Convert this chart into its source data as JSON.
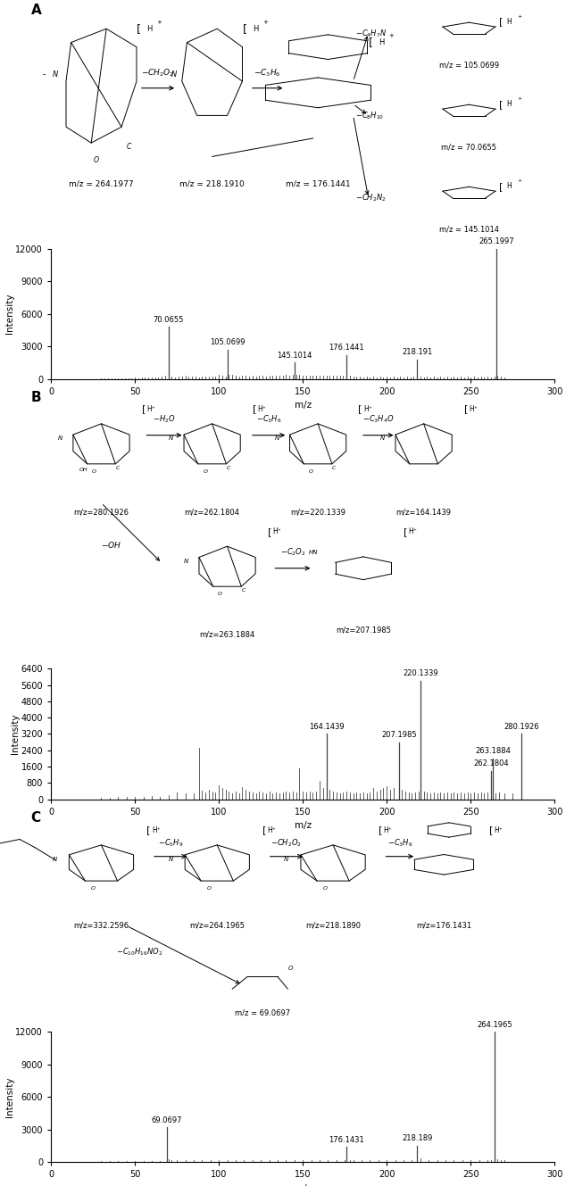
{
  "panel_A": {
    "spectrum": {
      "major_peaks": [
        [
          70.0655,
          4800
        ],
        [
          105.0699,
          2700
        ],
        [
          145.1014,
          1500
        ],
        [
          176.1441,
          2200
        ],
        [
          218.191,
          1800
        ],
        [
          265.1997,
          12000
        ]
      ],
      "minor_peaks": [
        [
          30,
          80
        ],
        [
          32,
          60
        ],
        [
          34,
          70
        ],
        [
          36,
          60
        ],
        [
          38,
          80
        ],
        [
          40,
          100
        ],
        [
          42,
          80
        ],
        [
          44,
          70
        ],
        [
          46,
          80
        ],
        [
          48,
          100
        ],
        [
          50,
          120
        ],
        [
          52,
          100
        ],
        [
          54,
          120
        ],
        [
          56,
          150
        ],
        [
          58,
          120
        ],
        [
          60,
          150
        ],
        [
          62,
          120
        ],
        [
          64,
          150
        ],
        [
          66,
          200
        ],
        [
          68,
          300
        ],
        [
          72,
          200
        ],
        [
          74,
          180
        ],
        [
          76,
          200
        ],
        [
          78,
          220
        ],
        [
          80,
          280
        ],
        [
          82,
          250
        ],
        [
          84,
          220
        ],
        [
          86,
          200
        ],
        [
          88,
          180
        ],
        [
          90,
          200
        ],
        [
          92,
          220
        ],
        [
          94,
          250
        ],
        [
          96,
          200
        ],
        [
          98,
          220
        ],
        [
          100,
          350
        ],
        [
          102,
          280
        ],
        [
          104,
          250
        ],
        [
          106,
          400
        ],
        [
          108,
          350
        ],
        [
          110,
          300
        ],
        [
          112,
          250
        ],
        [
          114,
          300
        ],
        [
          116,
          280
        ],
        [
          118,
          250
        ],
        [
          120,
          300
        ],
        [
          122,
          250
        ],
        [
          124,
          300
        ],
        [
          126,
          280
        ],
        [
          128,
          250
        ],
        [
          130,
          300
        ],
        [
          132,
          280
        ],
        [
          134,
          300
        ],
        [
          136,
          280
        ],
        [
          138,
          300
        ],
        [
          140,
          350
        ],
        [
          142,
          300
        ],
        [
          144,
          350
        ],
        [
          146,
          400
        ],
        [
          148,
          350
        ],
        [
          150,
          300
        ],
        [
          152,
          280
        ],
        [
          154,
          300
        ],
        [
          156,
          280
        ],
        [
          158,
          300
        ],
        [
          160,
          280
        ],
        [
          162,
          300
        ],
        [
          164,
          280
        ],
        [
          166,
          300
        ],
        [
          168,
          280
        ],
        [
          170,
          300
        ],
        [
          172,
          280
        ],
        [
          174,
          300
        ],
        [
          178,
          280
        ],
        [
          180,
          250
        ],
        [
          182,
          220
        ],
        [
          184,
          200
        ],
        [
          186,
          180
        ],
        [
          188,
          200
        ],
        [
          190,
          180
        ],
        [
          192,
          200
        ],
        [
          194,
          180
        ],
        [
          196,
          200
        ],
        [
          198,
          180
        ],
        [
          200,
          200
        ],
        [
          202,
          180
        ],
        [
          204,
          200
        ],
        [
          206,
          180
        ],
        [
          208,
          200
        ],
        [
          210,
          180
        ],
        [
          212,
          200
        ],
        [
          214,
          180
        ],
        [
          216,
          200
        ],
        [
          220,
          200
        ],
        [
          222,
          180
        ],
        [
          224,
          200
        ],
        [
          226,
          180
        ],
        [
          228,
          200
        ],
        [
          230,
          180
        ],
        [
          232,
          200
        ],
        [
          234,
          180
        ],
        [
          236,
          200
        ],
        [
          238,
          180
        ],
        [
          240,
          200
        ],
        [
          242,
          180
        ],
        [
          244,
          200
        ],
        [
          246,
          180
        ],
        [
          248,
          200
        ],
        [
          250,
          180
        ],
        [
          252,
          200
        ],
        [
          254,
          180
        ],
        [
          256,
          200
        ],
        [
          258,
          180
        ],
        [
          260,
          200
        ],
        [
          262,
          180
        ],
        [
          264,
          200
        ],
        [
          266,
          300
        ],
        [
          268,
          200
        ],
        [
          270,
          180
        ]
      ],
      "xlim": [
        0,
        300
      ],
      "ylim": [
        0,
        12000
      ],
      "yticks": [
        0,
        3000,
        6000,
        9000,
        12000
      ],
      "xlabel": "m/z",
      "ylabel": "Intensity",
      "labeled_peaks": [
        [
          70.0655,
          4800,
          "70.0655",
          "left"
        ],
        [
          105.0699,
          2700,
          "105.0699",
          "center"
        ],
        [
          145.1014,
          1500,
          "145.1014",
          "center"
        ],
        [
          176.1441,
          2200,
          "176.1441",
          "center"
        ],
        [
          218.191,
          1800,
          "218.191",
          "center"
        ],
        [
          265.1997,
          12000,
          "265.1997",
          "left"
        ]
      ]
    }
  },
  "panel_B": {
    "spectrum": {
      "major_peaks": [
        [
          164.1439,
          3200
        ],
        [
          207.1985,
          2800
        ],
        [
          220.1339,
          5800
        ],
        [
          262.1804,
          1400
        ],
        [
          263.1884,
          2000
        ],
        [
          280.1926,
          3200
        ]
      ],
      "minor_peaks": [
        [
          30,
          80
        ],
        [
          35,
          80
        ],
        [
          40,
          100
        ],
        [
          45,
          100
        ],
        [
          50,
          120
        ],
        [
          55,
          120
        ],
        [
          60,
          150
        ],
        [
          65,
          120
        ],
        [
          70,
          180
        ],
        [
          75,
          350
        ],
        [
          80,
          300
        ],
        [
          85,
          300
        ],
        [
          88,
          2500
        ],
        [
          90,
          400
        ],
        [
          92,
          350
        ],
        [
          94,
          450
        ],
        [
          96,
          380
        ],
        [
          98,
          350
        ],
        [
          100,
          700
        ],
        [
          102,
          550
        ],
        [
          104,
          480
        ],
        [
          106,
          380
        ],
        [
          108,
          300
        ],
        [
          110,
          380
        ],
        [
          112,
          300
        ],
        [
          114,
          600
        ],
        [
          116,
          450
        ],
        [
          118,
          380
        ],
        [
          120,
          320
        ],
        [
          122,
          300
        ],
        [
          124,
          380
        ],
        [
          126,
          320
        ],
        [
          128,
          300
        ],
        [
          130,
          380
        ],
        [
          132,
          300
        ],
        [
          134,
          320
        ],
        [
          136,
          300
        ],
        [
          138,
          320
        ],
        [
          140,
          380
        ],
        [
          142,
          320
        ],
        [
          144,
          380
        ],
        [
          146,
          320
        ],
        [
          148,
          1500
        ],
        [
          150,
          380
        ],
        [
          152,
          320
        ],
        [
          154,
          380
        ],
        [
          156,
          320
        ],
        [
          158,
          380
        ],
        [
          160,
          900
        ],
        [
          162,
          550
        ],
        [
          166,
          450
        ],
        [
          168,
          380
        ],
        [
          170,
          320
        ],
        [
          172,
          280
        ],
        [
          174,
          320
        ],
        [
          176,
          380
        ],
        [
          178,
          320
        ],
        [
          180,
          280
        ],
        [
          182,
          320
        ],
        [
          184,
          280
        ],
        [
          186,
          320
        ],
        [
          188,
          280
        ],
        [
          190,
          320
        ],
        [
          192,
          550
        ],
        [
          194,
          380
        ],
        [
          196,
          450
        ],
        [
          198,
          550
        ],
        [
          200,
          650
        ],
        [
          202,
          450
        ],
        [
          204,
          550
        ],
        [
          209,
          450
        ],
        [
          211,
          380
        ],
        [
          213,
          320
        ],
        [
          215,
          280
        ],
        [
          217,
          320
        ],
        [
          219,
          380
        ],
        [
          222,
          380
        ],
        [
          224,
          320
        ],
        [
          226,
          280
        ],
        [
          228,
          320
        ],
        [
          230,
          280
        ],
        [
          232,
          320
        ],
        [
          234,
          280
        ],
        [
          236,
          320
        ],
        [
          238,
          280
        ],
        [
          240,
          320
        ],
        [
          242,
          280
        ],
        [
          244,
          320
        ],
        [
          246,
          280
        ],
        [
          248,
          320
        ],
        [
          250,
          280
        ],
        [
          252,
          320
        ],
        [
          254,
          280
        ],
        [
          256,
          320
        ],
        [
          258,
          280
        ],
        [
          260,
          320
        ],
        [
          265,
          280
        ],
        [
          267,
          320
        ],
        [
          270,
          280
        ],
        [
          275,
          280
        ]
      ],
      "xlim": [
        0,
        300
      ],
      "ylim": [
        0,
        6400
      ],
      "yticks": [
        0,
        800,
        1600,
        2400,
        3200,
        4000,
        4800,
        5600,
        6400
      ],
      "xlabel": "m/z",
      "ylabel": "Intensity",
      "labeled_peaks": [
        [
          164.1439,
          3200,
          "164.1439",
          "center"
        ],
        [
          207.1985,
          2800,
          "207.1985",
          "center"
        ],
        [
          220.1339,
          5800,
          "220.1339",
          "center"
        ],
        [
          262.1804,
          1400,
          "262.1804",
          "right"
        ],
        [
          263.1884,
          2000,
          "263.1884",
          "left"
        ],
        [
          280.1926,
          3200,
          "280.1926",
          "center"
        ]
      ]
    }
  },
  "panel_C": {
    "spectrum": {
      "major_peaks": [
        [
          69.0697,
          3200
        ],
        [
          176.1431,
          1400
        ],
        [
          218.189,
          1500
        ],
        [
          264.1965,
          12000
        ]
      ],
      "minor_peaks": [
        [
          30,
          80
        ],
        [
          35,
          80
        ],
        [
          40,
          100
        ],
        [
          45,
          100
        ],
        [
          50,
          120
        ],
        [
          55,
          120
        ],
        [
          60,
          150
        ],
        [
          65,
          120
        ],
        [
          70,
          300
        ],
        [
          72,
          200
        ],
        [
          75,
          180
        ],
        [
          80,
          200
        ],
        [
          85,
          180
        ],
        [
          90,
          200
        ],
        [
          95,
          180
        ],
        [
          100,
          200
        ],
        [
          105,
          180
        ],
        [
          110,
          200
        ],
        [
          115,
          180
        ],
        [
          120,
          200
        ],
        [
          125,
          180
        ],
        [
          130,
          200
        ],
        [
          135,
          180
        ],
        [
          140,
          200
        ],
        [
          145,
          180
        ],
        [
          150,
          200
        ],
        [
          155,
          180
        ],
        [
          160,
          200
        ],
        [
          165,
          180
        ],
        [
          170,
          200
        ],
        [
          175,
          180
        ],
        [
          178,
          200
        ],
        [
          180,
          180
        ],
        [
          185,
          200
        ],
        [
          190,
          180
        ],
        [
          195,
          200
        ],
        [
          200,
          180
        ],
        [
          205,
          200
        ],
        [
          210,
          180
        ],
        [
          215,
          200
        ],
        [
          220,
          350
        ],
        [
          225,
          200
        ],
        [
          230,
          180
        ],
        [
          235,
          200
        ],
        [
          240,
          180
        ],
        [
          245,
          200
        ],
        [
          250,
          180
        ],
        [
          255,
          200
        ],
        [
          260,
          180
        ],
        [
          262,
          200
        ],
        [
          266,
          300
        ],
        [
          268,
          200
        ],
        [
          270,
          180
        ]
      ],
      "xlim": [
        0,
        300
      ],
      "ylim": [
        0,
        12000
      ],
      "yticks": [
        0,
        3000,
        6000,
        9000,
        12000
      ],
      "xlabel": "m/z",
      "ylabel": "Intensity",
      "labeled_peaks": [
        [
          69.0697,
          3200,
          "69.0697",
          "center"
        ],
        [
          176.1431,
          1400,
          "176.1431",
          "center"
        ],
        [
          218.189,
          1500,
          "218.189",
          "center"
        ],
        [
          264.1965,
          12000,
          "264.1965",
          "left"
        ]
      ]
    }
  },
  "peak_color": "#444444",
  "label_fontsize": 6.0,
  "axis_fontsize": 7.5,
  "title_fontsize": 11
}
